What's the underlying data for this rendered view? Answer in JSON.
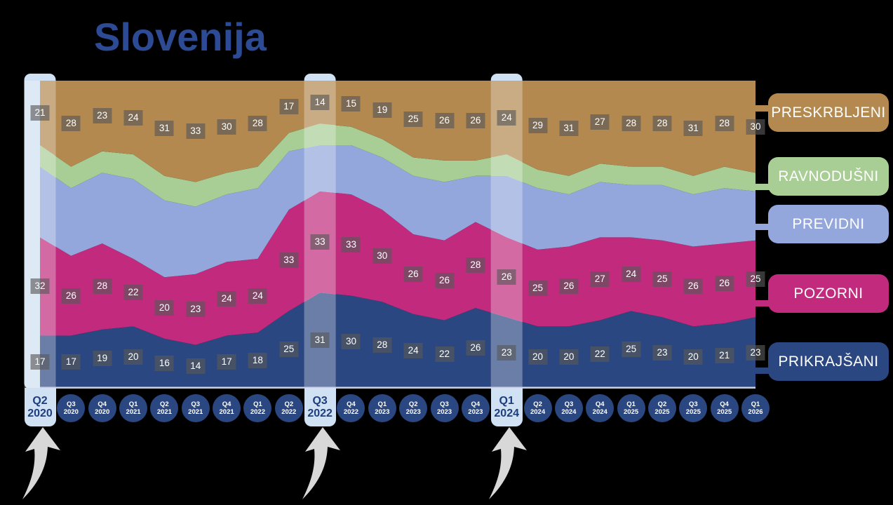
{
  "title": "Slovenija",
  "chart_data": {
    "type": "area",
    "stacked": true,
    "unit": "percent",
    "total_per_quarter": 100,
    "title": "Slovenija",
    "legend_position": "right",
    "categories": [
      "Q2 2020",
      "Q3 2020",
      "Q4 2020",
      "Q1 2021",
      "Q2 2021",
      "Q3 2021",
      "Q4 2021",
      "Q1 2022",
      "Q2 2022",
      "Q3 2022",
      "Q4 2022",
      "Q1 2023",
      "Q2 2023",
      "Q3 2023",
      "Q4 2023",
      "Q1 2024",
      "Q2 2024",
      "Q3 2024",
      "Q4 2024",
      "Q1 2025",
      "Q2 2025",
      "Q3 2025",
      "Q4 2025",
      "Q1 2026"
    ],
    "series": [
      {
        "id": "prikrajsani",
        "name": "PRIKRAJŠANI",
        "color": "#2B4781",
        "labeled": true,
        "values": [
          17,
          17,
          19,
          20,
          16,
          14,
          17,
          18,
          25,
          31,
          30,
          28,
          24,
          22,
          26,
          23,
          20,
          20,
          22,
          25,
          23,
          20,
          21,
          23
        ]
      },
      {
        "id": "pozorni",
        "name": "POZORNI",
        "color": "#C12A7D",
        "labeled": true,
        "values": [
          32,
          26,
          28,
          22,
          20,
          23,
          24,
          24,
          33,
          33,
          33,
          30,
          26,
          26,
          28,
          26,
          25,
          26,
          27,
          24,
          25,
          26,
          26,
          25
        ]
      },
      {
        "id": "previdni",
        "name": "PREVIDNI",
        "color": "#94A7DC",
        "labeled": false,
        "estimated": true,
        "values": [
          23,
          22,
          23,
          26,
          25,
          22,
          22,
          23,
          19,
          15,
          16,
          17,
          19,
          19,
          15,
          20,
          20,
          17,
          18,
          17,
          18,
          17,
          18,
          16
        ]
      },
      {
        "id": "ravnodusni",
        "name": "RAVNODUŠNI",
        "color": "#A8CE95",
        "labeled": false,
        "estimated": true,
        "values": [
          7,
          7,
          7,
          8,
          8,
          8,
          7,
          7,
          6,
          7,
          6,
          6,
          6,
          7,
          5,
          7,
          6,
          6,
          6,
          6,
          6,
          6,
          7,
          6
        ]
      },
      {
        "id": "preskrbljeni",
        "name": "PRESKRBLJENI",
        "color": "#B3894F",
        "labeled": true,
        "values": [
          21,
          28,
          23,
          24,
          31,
          33,
          30,
          28,
          17,
          14,
          15,
          19,
          25,
          26,
          26,
          24,
          29,
          31,
          27,
          28,
          28,
          31,
          28,
          30
        ]
      }
    ],
    "highlighted_quarters": [
      "Q2 2020",
      "Q3 2022",
      "Q1 2024"
    ]
  },
  "legend": [
    {
      "id": "preskrbljeni",
      "label": "PRESKRBLJENI",
      "color": "#B3894F"
    },
    {
      "id": "ravnodusni",
      "label": "RAVNODUŠNI",
      "color": "#A8CE95"
    },
    {
      "id": "previdni",
      "label": "PREVIDNI",
      "color": "#94A7DC"
    },
    {
      "id": "pozorni",
      "label": "POZORNI",
      "color": "#C12A7D"
    },
    {
      "id": "prikrajsani",
      "label": "PRIKRAJŠANI",
      "color": "#2B4781"
    }
  ],
  "colors": {
    "background": "#000000",
    "title": "#2D4A94",
    "highlight": "#CFE1F2",
    "highlight_text": "#1E3D7D",
    "label_box": "rgba(88,88,88,0.63)",
    "axis_circle": "#2B4781",
    "baseline": "#C9CFE8",
    "arrow": "#D8D8D8"
  }
}
